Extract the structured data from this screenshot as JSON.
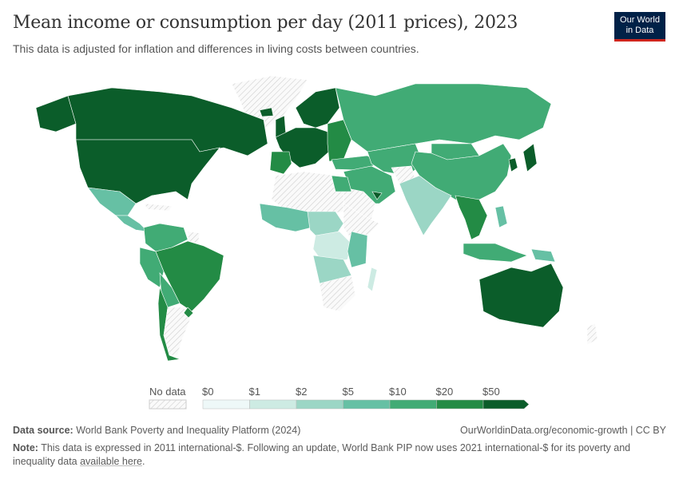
{
  "header": {
    "title": "Mean income or consumption per day (2011 prices), 2023",
    "subtitle": "This data is adjusted for inflation and differences in living costs between countries.",
    "logo_line1": "Our World",
    "logo_line2": "in Data"
  },
  "legend": {
    "no_data_label": "No data",
    "bins": [
      {
        "label": "$0",
        "color": "#eef8f8"
      },
      {
        "label": "$1",
        "color": "#cdebe3"
      },
      {
        "label": "$2",
        "color": "#9bd6c5"
      },
      {
        "label": "$5",
        "color": "#66c0a4"
      },
      {
        "label": "$10",
        "color": "#41ab75"
      },
      {
        "label": "$20",
        "color": "#238b45"
      },
      {
        "label": "$50",
        "color": "#0b5d2a"
      }
    ]
  },
  "footer": {
    "source_label": "Data source:",
    "source_text": "World Bank Poverty and Inequality Platform (2024)",
    "url": "OurWorldinData.org/economic-growth | CC BY",
    "note_label": "Note:",
    "note_text": "This data is expressed in 2011 international-$. Following an update, World Bank PIP now uses 2021 international-$ for its poverty and inequality data",
    "note_link": "available here",
    "note_end": "."
  }
}
